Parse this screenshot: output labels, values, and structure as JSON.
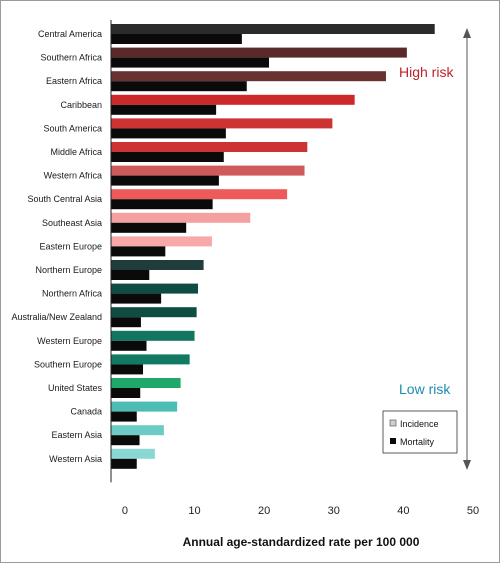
{
  "chart_data": {
    "type": "bar",
    "orientation": "horizontal",
    "categories": [
      "Central America",
      "Southern Africa",
      "Eastern Africa",
      "Caribbean",
      "South America",
      "Middle Africa",
      "Western Africa",
      "South Central Asia",
      "Southeast Asia",
      "Eastern Europe",
      "Northern Europe",
      "Northern Africa",
      "Australia/New Zealand",
      "Western Europe",
      "Southern Europe",
      "United States",
      "Canada",
      "Eastern Asia",
      "Western Asia"
    ],
    "series": [
      {
        "name": "Incidence",
        "values": [
          44.5,
          40.5,
          37.5,
          33,
          29.8,
          26.2,
          25.8,
          23.3,
          18,
          12.5,
          11.3,
          10.5,
          10.3,
          10,
          9.3,
          8,
          7.5,
          5.6,
          4.3
        ]
      },
      {
        "name": "Mortality",
        "values": [
          16.8,
          20.7,
          17.5,
          13.1,
          14.5,
          14.2,
          13.5,
          12.6,
          8.8,
          5.8,
          3.5,
          5.2,
          2.3,
          3.1,
          2.6,
          2.2,
          1.7,
          2.1,
          1.7
        ]
      }
    ],
    "incidence_colors": [
      "#2b2b2b",
      "#5a2a2a",
      "#6b3030",
      "#cc2a2a",
      "#cc3333",
      "#cc3333",
      "#cf5a5a",
      "#ee5a5a",
      "#f5a0a0",
      "#f7a8a8",
      "#1f3d3a",
      "#0f4d42",
      "#0f4d42",
      "#127560",
      "#127a62",
      "#1ea86a",
      "#4cbcb4",
      "#6cccc4",
      "#8ad8d4"
    ],
    "mortality_color": "#0a0a0a",
    "xlabel": "Annual age-standardized rate per 100 000",
    "xlim": [
      -2,
      50
    ],
    "xticks": [
      0,
      10,
      20,
      30,
      40,
      50
    ],
    "legend": {
      "position": "bottom-right",
      "entries": [
        "Incidence",
        "Mortality"
      ]
    },
    "annotations": {
      "high_risk": {
        "text": "High risk",
        "color": "#c0202a"
      },
      "low_risk": {
        "text": "Low risk",
        "color": "#1b8db0"
      }
    },
    "grid": false
  }
}
